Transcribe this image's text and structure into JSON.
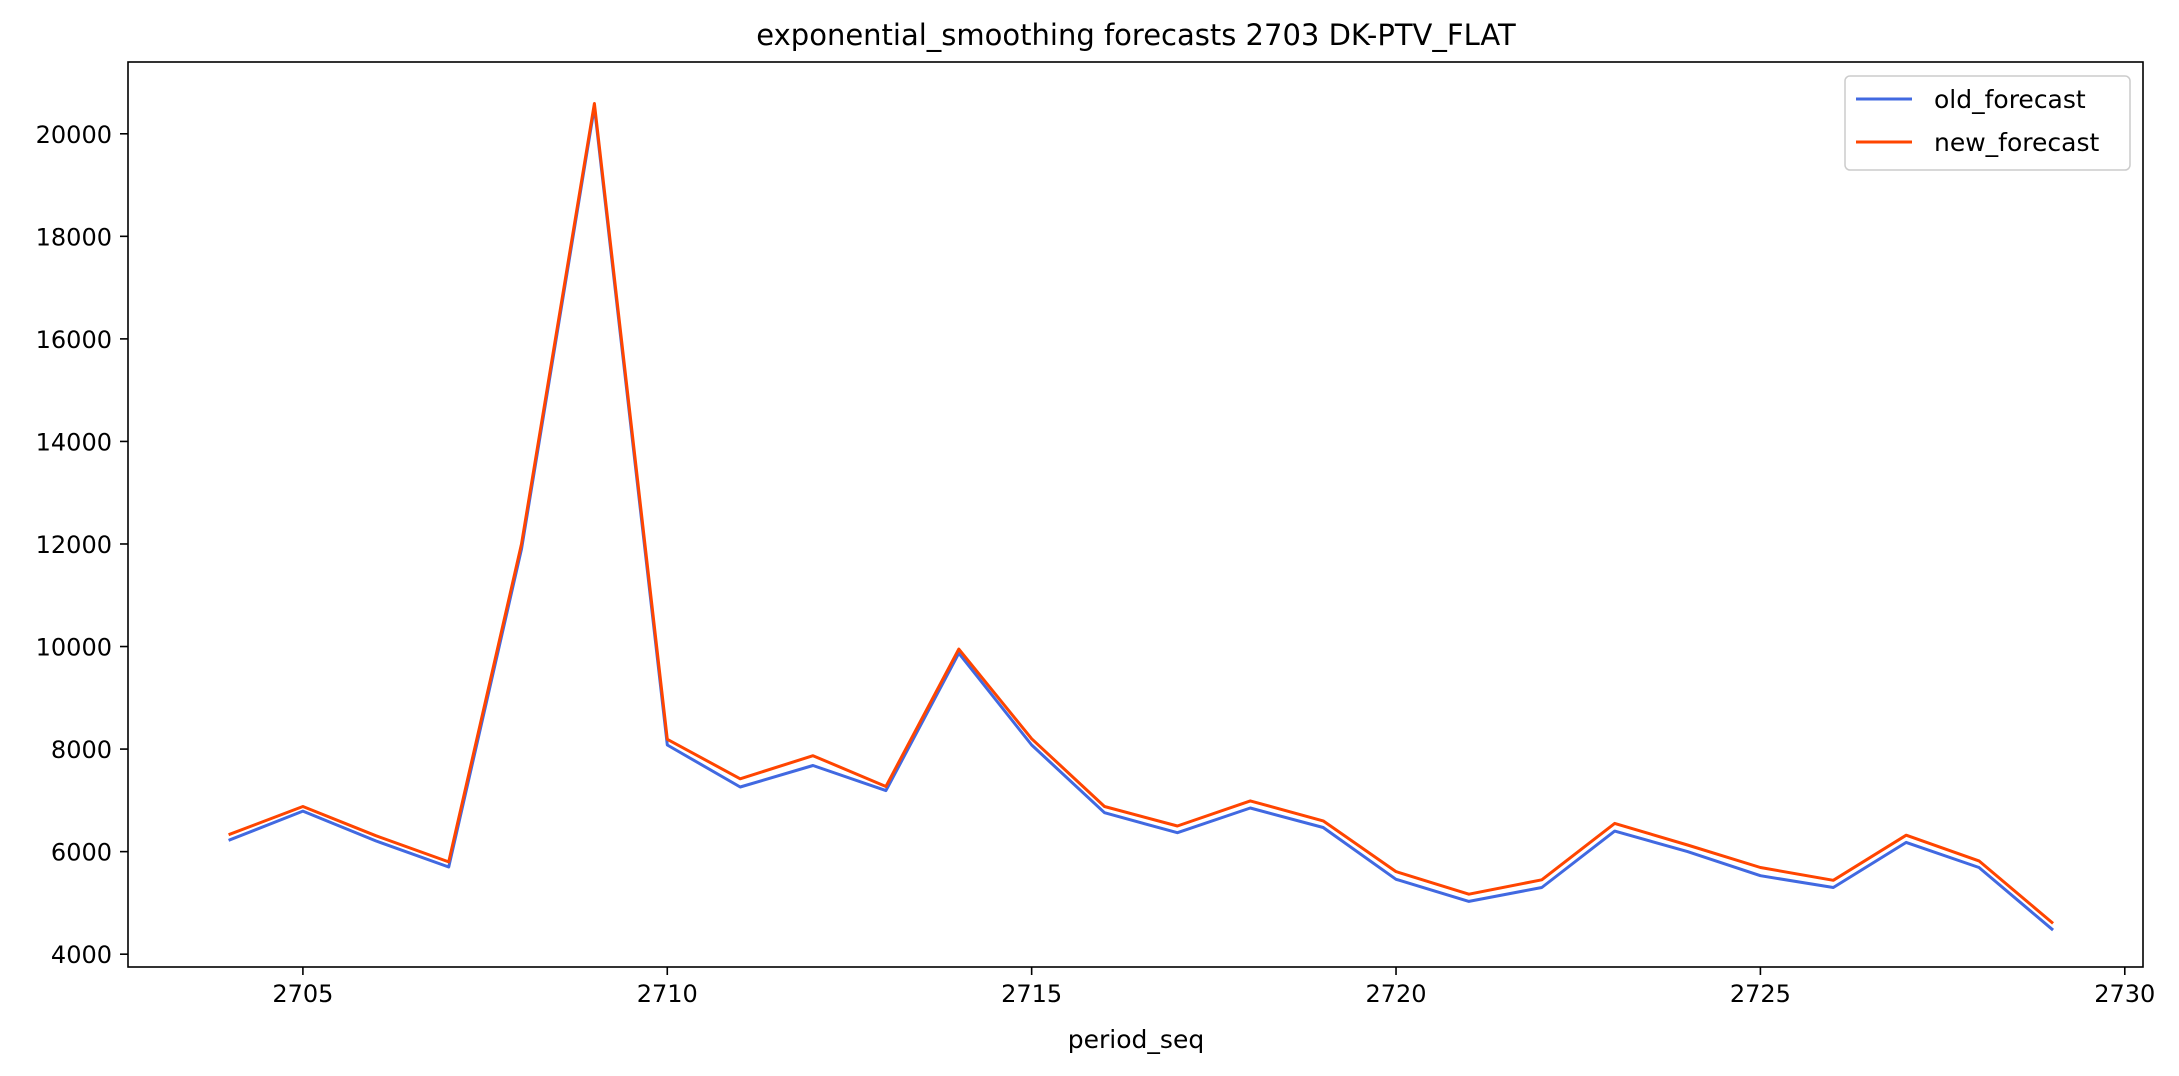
{
  "chart_data": {
    "type": "line",
    "title": "exponential_smoothing forecasts 2703 DK-PTV_FLAT",
    "xlabel": "period_seq",
    "ylabel": "",
    "x": [
      2704,
      2705,
      2706,
      2707,
      2708,
      2709,
      2710,
      2711,
      2712,
      2713,
      2714,
      2715,
      2716,
      2717,
      2718,
      2719,
      2720,
      2721,
      2722,
      2723,
      2724,
      2725,
      2726,
      2727,
      2728,
      2729
    ],
    "xlim": [
      2702.6,
      2730.25
    ],
    "ylim": [
      3750,
      21400
    ],
    "xticks": [
      2705,
      2710,
      2715,
      2720,
      2725,
      2730
    ],
    "yticks": [
      4000,
      6000,
      8000,
      10000,
      12000,
      14000,
      16000,
      18000,
      20000
    ],
    "grid": false,
    "legend_position": "top-right",
    "series": [
      {
        "name": "old_forecast",
        "color": "#4169e1",
        "values": [
          6230,
          6790,
          6210,
          5700,
          11900,
          20520,
          8080,
          7260,
          7680,
          7190,
          9870,
          8080,
          6760,
          6370,
          6850,
          6470,
          5460,
          5030,
          5300,
          6400,
          6000,
          5530,
          5300,
          6180,
          5690,
          4490
        ]
      },
      {
        "name": "new_forecast",
        "color": "#ff4500",
        "values": [
          6340,
          6880,
          6310,
          5800,
          12000,
          20590,
          8190,
          7420,
          7870,
          7270,
          9950,
          8200,
          6880,
          6500,
          6990,
          6600,
          5610,
          5170,
          5450,
          6550,
          6130,
          5690,
          5440,
          6320,
          5820,
          4620
        ]
      }
    ]
  }
}
